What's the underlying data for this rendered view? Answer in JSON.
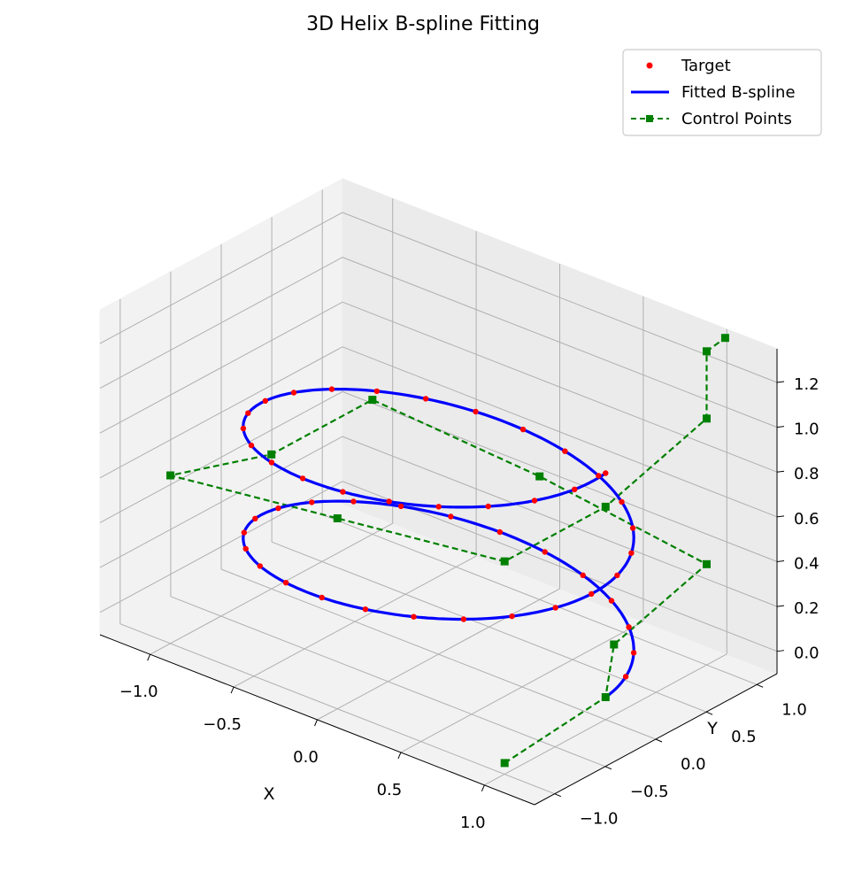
{
  "chart_data": {
    "type": "line",
    "projection": "3d",
    "title": "3D Helix B-spline Fitting",
    "xlabel": "X",
    "ylabel": "Y",
    "zlabel": "",
    "xlim": [
      -1.3,
      1.3
    ],
    "ylim": [
      -1.2,
      1.2
    ],
    "zlim": [
      -0.1,
      1.35
    ],
    "xticks": [
      -1.0,
      -0.5,
      0.0,
      0.5,
      1.0
    ],
    "xtick_labels": [
      "−1.0",
      "−0.5",
      "0.0",
      "0.5",
      "1.0"
    ],
    "yticks": [
      -1.0,
      -0.5,
      0.0,
      0.5,
      1.0
    ],
    "ytick_labels": [
      "−1.0",
      "−0.5",
      "0.0",
      "0.5",
      "1.0"
    ],
    "zticks": [
      0.0,
      0.2,
      0.4,
      0.6,
      0.8,
      1.0,
      1.2
    ],
    "ztick_labels": [
      "0.0",
      "0.2",
      "0.4",
      "0.6",
      "0.8",
      "1.0",
      "1.2"
    ],
    "grid": true,
    "legend_position": "top-right",
    "series": [
      {
        "name": "Target",
        "style": "points",
        "color": "#ff0000",
        "t_range": [
          0,
          12.566
        ],
        "n_points": 50,
        "parametric": "x = cos(t), y = sin(t), z = t / (4*pi)"
      },
      {
        "name": "Fitted B-spline",
        "style": "line",
        "color": "#0000ff",
        "t_range": [
          0,
          12.566
        ],
        "parametric": "x = cos(t), y = sin(t), z = t / (4*pi)"
      },
      {
        "name": "Control Points",
        "style": "dashed-squares",
        "color": "#008000",
        "x": [
          1.0,
          1.0,
          1.05,
          1.0,
          0.0,
          -1.0,
          -1.0,
          -1.0,
          0.0,
          1.0,
          1.0,
          1.0,
          1.0,
          1.05
        ],
        "y": [
          -1.0,
          0.0,
          0.0,
          1.0,
          1.0,
          1.0,
          0.0,
          -1.0,
          -1.0,
          -1.0,
          0.0,
          1.0,
          1.0,
          1.1
        ],
        "z": [
          -0.05,
          0.0,
          0.25,
          0.35,
          0.45,
          0.5,
          0.5,
          0.65,
          0.75,
          0.85,
          0.85,
          1.0,
          1.3,
          1.35
        ]
      }
    ]
  }
}
